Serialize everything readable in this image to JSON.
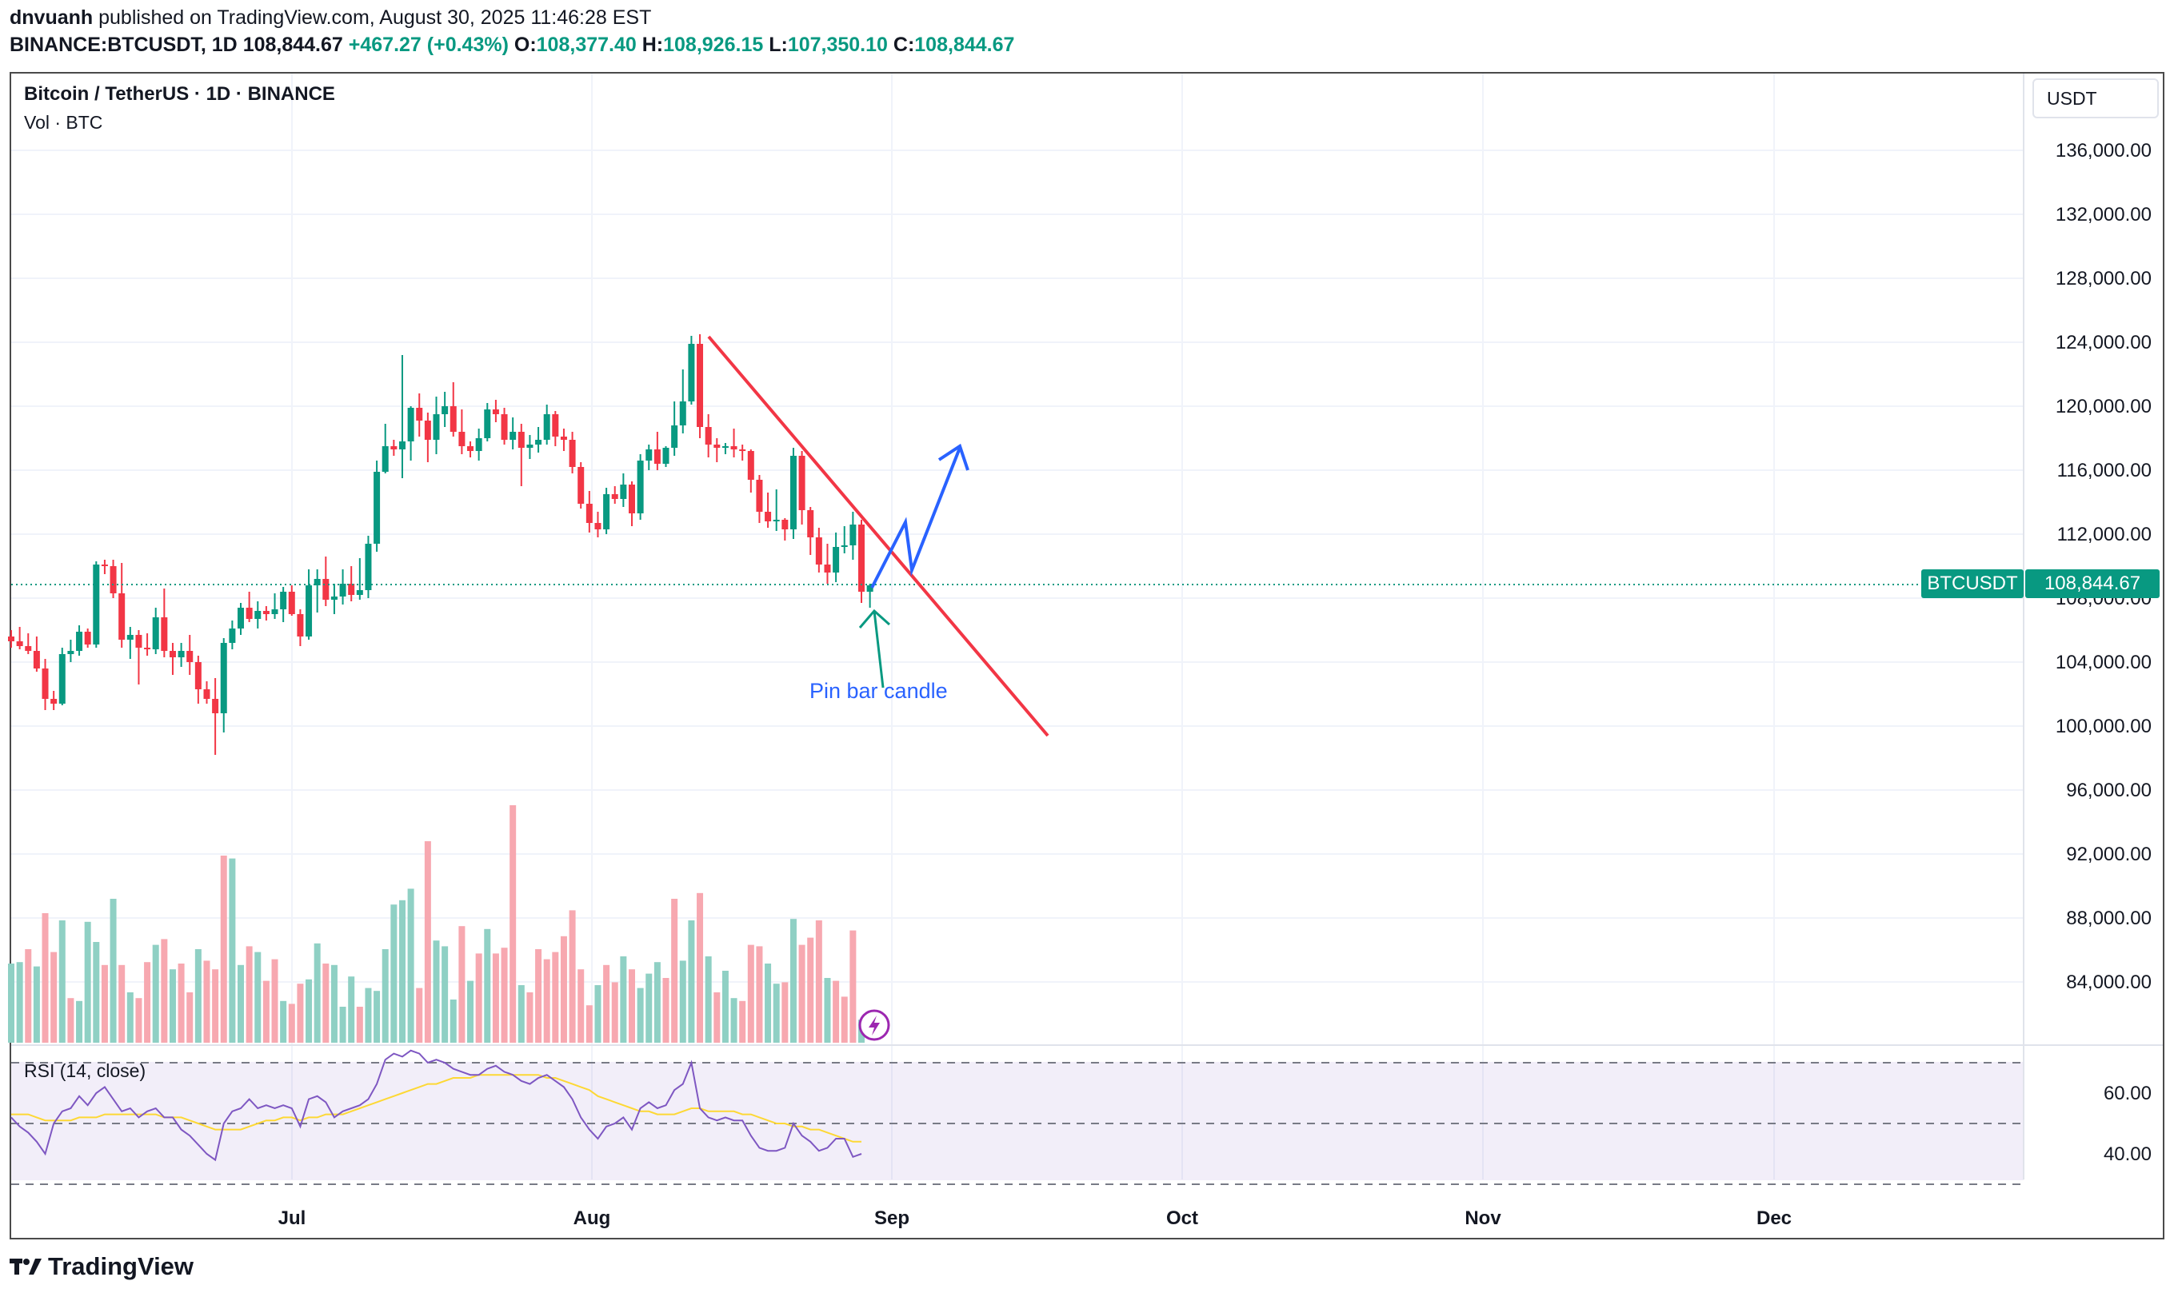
{
  "header": {
    "author": "dnvuanh",
    "published_text": "published on TradingView.com, August 30, 2025 11:46:28 EST",
    "symbol": "BINANCE:BTCUSDT, 1D",
    "last": "108,844.67",
    "change": "+467.27 (+0.43%)",
    "o_label": "O:",
    "o": "108,377.40",
    "h_label": "H:",
    "h": "108,926.15",
    "l_label": "L:",
    "l": "107,350.10",
    "c_label": "C:",
    "c": "108,844.67"
  },
  "legend": {
    "title": "Bitcoin / TetherUS · 1D · BINANCE",
    "volume": "Vol · BTC",
    "rsi": "RSI (14, close)"
  },
  "currency_button": "USDT",
  "price_tags": {
    "symbol": "BTCUSDT",
    "price": "108,844.67"
  },
  "annotation": {
    "text": "Pin bar candle"
  },
  "footer": {
    "brand": "TradingView"
  },
  "colors": {
    "up": "#089981",
    "down": "#f23645",
    "trendline": "#f23645",
    "arrow": "#2962ff",
    "rsi": "#7e57c2",
    "rsi_ma": "#fdd835"
  },
  "chart_data": {
    "type": "candlestick",
    "symbol": "BTCUSDT",
    "interval": "1D",
    "price_axis_labels": [
      "136,000.00",
      "132,000.00",
      "128,000.00",
      "124,000.00",
      "120,000.00",
      "116,000.00",
      "112,000.00",
      "108,000.00",
      "104,000.00",
      "100,000.00",
      "96,000.00",
      "92,000.00",
      "88,000.00",
      "84,000.00"
    ],
    "price_ticks": [
      136000,
      132000,
      128000,
      124000,
      120000,
      116000,
      112000,
      108000,
      104000,
      100000,
      96000,
      92000,
      88000,
      84000
    ],
    "time_labels": [
      "Jul",
      "Aug",
      "Sep",
      "Oct",
      "Nov",
      "Dec"
    ],
    "rsi_axis_labels": [
      "60.00",
      "40.00"
    ],
    "rsi_ticks": [
      60,
      40
    ],
    "rsi_bands": [
      70,
      50,
      30
    ],
    "ohlc": [
      [
        105600,
        106000,
        104900,
        105300
      ],
      [
        105300,
        106200,
        104800,
        105000
      ],
      [
        105000,
        105800,
        104500,
        104700
      ],
      [
        104700,
        105600,
        103400,
        103600
      ],
      [
        103600,
        104200,
        101000,
        101700
      ],
      [
        101700,
        102200,
        101000,
        101400
      ],
      [
        101400,
        104900,
        101300,
        104500
      ],
      [
        104500,
        105400,
        104000,
        104700
      ],
      [
        104700,
        106300,
        104400,
        105900
      ],
      [
        105900,
        106100,
        104900,
        105100
      ],
      [
        105100,
        110300,
        104900,
        110100
      ],
      [
        110100,
        110400,
        109500,
        110000
      ],
      [
        110000,
        110400,
        108000,
        108300
      ],
      [
        108300,
        110200,
        104900,
        105400
      ],
      [
        105400,
        106200,
        104200,
        105700
      ],
      [
        105700,
        106000,
        102600,
        104900
      ],
      [
        104900,
        105800,
        104400,
        104800
      ],
      [
        104800,
        107400,
        104500,
        106800
      ],
      [
        106800,
        108600,
        104300,
        104700
      ],
      [
        104700,
        105200,
        103200,
        104300
      ],
      [
        104300,
        105200,
        103700,
        104700
      ],
      [
        104700,
        105700,
        103200,
        104000
      ],
      [
        104000,
        104400,
        101400,
        102300
      ],
      [
        102300,
        102800,
        101400,
        101700
      ],
      [
        101700,
        103000,
        98200,
        100800
      ],
      [
        100800,
        105500,
        99600,
        105200
      ],
      [
        105200,
        106600,
        104800,
        106100
      ],
      [
        106100,
        107700,
        105700,
        107400
      ],
      [
        107400,
        108400,
        106500,
        106700
      ],
      [
        106700,
        107800,
        106100,
        107200
      ],
      [
        107200,
        107500,
        106600,
        107000
      ],
      [
        107000,
        108300,
        106700,
        107300
      ],
      [
        107300,
        108700,
        106500,
        108400
      ],
      [
        108400,
        108800,
        106900,
        107000
      ],
      [
        107000,
        107300,
        105000,
        105600
      ],
      [
        105600,
        109800,
        105400,
        108800
      ],
      [
        108800,
        109800,
        107100,
        109200
      ],
      [
        109200,
        110600,
        107500,
        107900
      ],
      [
        107900,
        108900,
        107000,
        108100
      ],
      [
        108100,
        109800,
        107600,
        108900
      ],
      [
        108900,
        110000,
        107800,
        108200
      ],
      [
        108200,
        110500,
        107900,
        108500
      ],
      [
        108500,
        111900,
        108000,
        111400
      ],
      [
        111400,
        116600,
        110900,
        115900
      ],
      [
        115900,
        118900,
        115800,
        117500
      ],
      [
        117500,
        117900,
        116900,
        117300
      ],
      [
        117300,
        123200,
        115500,
        117800
      ],
      [
        117800,
        120000,
        116600,
        119900
      ],
      [
        119900,
        120800,
        118100,
        119100
      ],
      [
        119100,
        119600,
        116500,
        117900
      ],
      [
        117900,
        120600,
        117000,
        119500
      ],
      [
        119500,
        120900,
        118700,
        120000
      ],
      [
        120000,
        121500,
        118100,
        118400
      ],
      [
        118400,
        119800,
        117000,
        117500
      ],
      [
        117500,
        117800,
        116800,
        117200
      ],
      [
        117200,
        118600,
        116600,
        118000
      ],
      [
        118000,
        120200,
        117800,
        119800
      ],
      [
        119800,
        120400,
        119000,
        119500
      ],
      [
        119500,
        119900,
        117600,
        117900
      ],
      [
        117900,
        119300,
        117300,
        118400
      ],
      [
        118400,
        118900,
        115000,
        117400
      ],
      [
        117400,
        118200,
        116700,
        117600
      ],
      [
        117600,
        118700,
        117100,
        117900
      ],
      [
        117900,
        120100,
        117600,
        119500
      ],
      [
        119500,
        119700,
        117500,
        118100
      ],
      [
        118100,
        118600,
        117200,
        117900
      ],
      [
        117900,
        118400,
        115800,
        116200
      ],
      [
        116200,
        116500,
        113600,
        113900
      ],
      [
        113900,
        114700,
        112100,
        112700
      ],
      [
        112700,
        113400,
        111800,
        112300
      ],
      [
        112300,
        114900,
        112000,
        114500
      ],
      [
        114500,
        115000,
        113900,
        114200
      ],
      [
        114200,
        115800,
        113700,
        115100
      ],
      [
        115100,
        115300,
        112500,
        113300
      ],
      [
        113300,
        117000,
        112900,
        116600
      ],
      [
        116600,
        117600,
        116000,
        117300
      ],
      [
        117300,
        118400,
        116000,
        116400
      ],
      [
        116400,
        117500,
        116200,
        117400
      ],
      [
        117400,
        120300,
        116900,
        118800
      ],
      [
        118800,
        122300,
        118300,
        120300
      ],
      [
        120300,
        124400,
        120100,
        123900
      ],
      [
        123900,
        124500,
        118000,
        118700
      ],
      [
        118700,
        119500,
        116800,
        117600
      ],
      [
        117600,
        118000,
        116500,
        117400
      ],
      [
        117400,
        117700,
        117000,
        117500
      ],
      [
        117500,
        118600,
        116800,
        117300
      ],
      [
        117300,
        117600,
        116600,
        117200
      ],
      [
        117200,
        117300,
        114600,
        115400
      ],
      [
        115400,
        115700,
        112700,
        113400
      ],
      [
        113400,
        114600,
        112400,
        112800
      ],
      [
        112800,
        114800,
        112200,
        112900
      ],
      [
        112900,
        113000,
        111600,
        112300
      ],
      [
        112300,
        117400,
        111700,
        116900
      ],
      [
        116900,
        117200,
        112600,
        113500
      ],
      [
        113500,
        113700,
        110700,
        111800
      ],
      [
        111800,
        112400,
        109600,
        110100
      ],
      [
        110100,
        111400,
        108900,
        109600
      ],
      [
        109600,
        112100,
        109000,
        111200
      ],
      [
        111200,
        112500,
        110800,
        111300
      ],
      [
        111300,
        113400,
        110400,
        112600
      ],
      [
        112600,
        112900,
        107700,
        108400
      ],
      [
        108400,
        108900,
        107400,
        108800
      ]
    ],
    "volume": [
      [
        0.55,
        1
      ],
      [
        0.56,
        1
      ],
      [
        0.65,
        0
      ],
      [
        0.53,
        1
      ],
      [
        0.9,
        0
      ],
      [
        0.63,
        0
      ],
      [
        0.85,
        1
      ],
      [
        0.31,
        0
      ],
      [
        0.29,
        1
      ],
      [
        0.84,
        1
      ],
      [
        0.7,
        1
      ],
      [
        0.54,
        0
      ],
      [
        1.0,
        1
      ],
      [
        0.54,
        0
      ],
      [
        0.35,
        1
      ],
      [
        0.31,
        0
      ],
      [
        0.56,
        0
      ],
      [
        0.68,
        1
      ],
      [
        0.72,
        0
      ],
      [
        0.51,
        1
      ],
      [
        0.55,
        0
      ],
      [
        0.35,
        0
      ],
      [
        0.65,
        1
      ],
      [
        0.57,
        0
      ],
      [
        0.51,
        0
      ],
      [
        1.3,
        0
      ],
      [
        1.28,
        1
      ],
      [
        0.54,
        1
      ],
      [
        0.67,
        0
      ],
      [
        0.63,
        1
      ],
      [
        0.43,
        0
      ],
      [
        0.58,
        0
      ],
      [
        0.29,
        1
      ],
      [
        0.27,
        0
      ],
      [
        0.41,
        0
      ],
      [
        0.44,
        1
      ],
      [
        0.69,
        1
      ],
      [
        0.55,
        0
      ],
      [
        0.54,
        1
      ],
      [
        0.25,
        1
      ],
      [
        0.46,
        1
      ],
      [
        0.25,
        0
      ],
      [
        0.38,
        1
      ],
      [
        0.36,
        1
      ],
      [
        0.65,
        1
      ],
      [
        0.96,
        1
      ],
      [
        0.99,
        1
      ],
      [
        1.07,
        1
      ],
      [
        0.38,
        0
      ],
      [
        1.4,
        0
      ],
      [
        0.71,
        1
      ],
      [
        0.67,
        1
      ],
      [
        0.3,
        1
      ],
      [
        0.81,
        0
      ],
      [
        0.43,
        1
      ],
      [
        0.62,
        0
      ],
      [
        0.79,
        1
      ],
      [
        0.62,
        0
      ],
      [
        0.66,
        0
      ],
      [
        1.65,
        0
      ],
      [
        0.4,
        1
      ],
      [
        0.35,
        0
      ],
      [
        0.65,
        0
      ],
      [
        0.58,
        0
      ],
      [
        0.63,
        0
      ],
      [
        0.74,
        0
      ],
      [
        0.92,
        0
      ],
      [
        0.51,
        0
      ],
      [
        0.26,
        0
      ],
      [
        0.4,
        1
      ],
      [
        0.54,
        0
      ],
      [
        0.42,
        0
      ],
      [
        0.6,
        1
      ],
      [
        0.51,
        0
      ],
      [
        0.38,
        1
      ],
      [
        0.48,
        1
      ],
      [
        0.56,
        1
      ],
      [
        0.45,
        0
      ],
      [
        1.0,
        0
      ],
      [
        0.57,
        1
      ],
      [
        0.85,
        1
      ],
      [
        1.04,
        0
      ],
      [
        0.6,
        1
      ],
      [
        0.35,
        0
      ],
      [
        0.5,
        1
      ],
      [
        0.31,
        1
      ],
      [
        0.29,
        0
      ],
      [
        0.68,
        0
      ],
      [
        0.67,
        0
      ],
      [
        0.55,
        1
      ],
      [
        0.41,
        1
      ],
      [
        0.42,
        0
      ],
      [
        0.86,
        1
      ],
      [
        0.68,
        0
      ],
      [
        0.73,
        0
      ],
      [
        0.85,
        0
      ],
      [
        0.45,
        1
      ],
      [
        0.43,
        0
      ],
      [
        0.32,
        0
      ],
      [
        0.78,
        0
      ],
      [
        0.16,
        1
      ]
    ],
    "rsi": [
      52,
      49,
      47,
      44,
      40,
      50,
      54,
      55,
      59,
      56,
      60,
      62,
      58,
      54,
      55,
      52,
      54,
      55,
      52,
      52,
      48,
      46,
      43,
      40,
      38,
      50,
      54,
      55,
      58,
      55,
      56,
      55,
      56,
      55,
      49,
      58,
      59,
      57,
      52,
      54,
      55,
      56,
      58,
      63,
      71,
      73,
      72,
      74,
      73,
      70,
      71,
      70,
      68,
      67,
      66,
      66,
      68,
      69,
      67,
      66,
      64,
      63,
      65,
      66,
      64,
      62,
      58,
      52,
      48,
      45,
      49,
      50,
      52,
      48,
      55,
      57,
      55,
      56,
      61,
      63,
      70,
      55,
      52,
      51,
      52,
      51,
      51,
      46,
      42,
      41,
      41,
      42,
      50,
      46,
      44,
      41,
      42,
      45,
      45,
      39,
      40
    ],
    "rsi_ma": [
      53,
      53,
      53,
      52,
      51,
      51,
      51,
      51,
      52,
      52,
      52,
      53,
      53,
      53,
      53,
      53,
      53,
      53,
      52,
      52,
      52,
      51,
      50,
      49,
      48,
      48,
      48,
      48,
      49,
      50,
      51,
      51,
      52,
      52,
      51,
      52,
      52,
      53,
      53,
      53,
      54,
      55,
      56,
      57,
      58,
      59,
      60,
      61,
      62,
      63,
      63,
      64,
      65,
      65,
      65,
      66,
      66,
      66,
      66,
      66,
      66,
      66,
      66,
      65,
      65,
      64,
      63,
      62,
      61,
      59,
      58,
      57,
      56,
      55,
      54,
      54,
      53,
      53,
      53,
      54,
      55,
      55,
      54,
      54,
      54,
      54,
      53,
      53,
      52,
      51,
      50,
      50,
      49,
      49,
      48,
      48,
      47,
      46,
      45,
      44,
      44
    ],
    "trendline_price": [
      124400,
      99600
    ],
    "annotation_arrows": "pin-bar arrow up at last candle; projected breakout path up to ~117,500"
  }
}
